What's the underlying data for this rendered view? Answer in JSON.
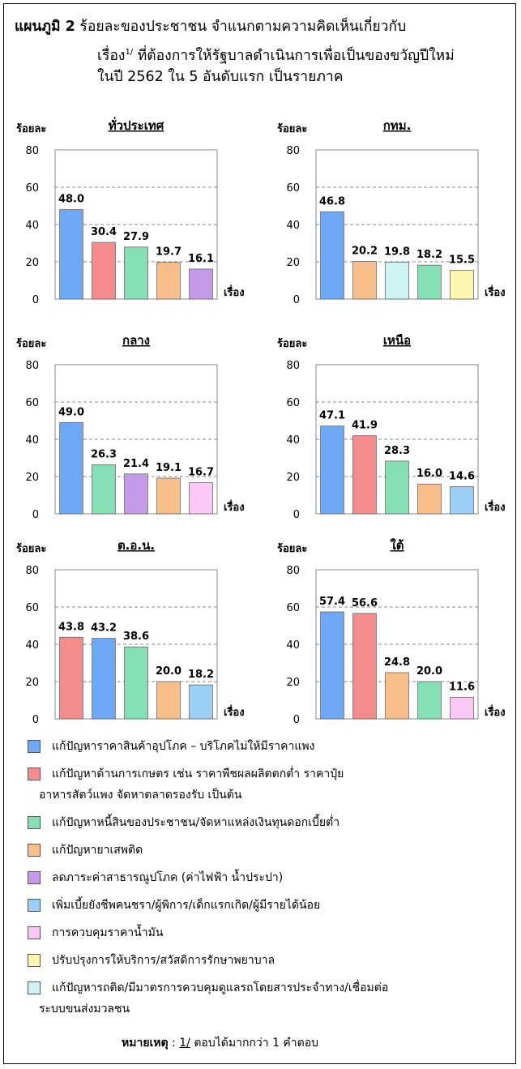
{
  "title": {
    "label": "แผนภูมิ 2",
    "line1": "ร้อยละของประชาชน  จำแนกตามความคิดเห็นเกี่ยวกับ",
    "line2_pre": "เรื่อง",
    "line2_sup": "1/",
    "line2_post": " ที่ต้องการให้รัฐบาลดำเนินการเพื่อเป็นของขวัญปีใหม่",
    "line3": "ในปี 2562 ใน 5 อันดับแรก  เป็นรายภาค"
  },
  "axis_text": {
    "ylabel": "ร้อยละ",
    "xlabel": "เรื่อง"
  },
  "colors": {
    "price": "#6fa8f5",
    "agri": "#f58c8c",
    "debt": "#86e0b6",
    "drugs": "#f8be8a",
    "utility": "#c59ae8",
    "welfare": "#9ccff5",
    "fuel": "#fbc7f5",
    "health": "#fdf6b0",
    "traffic": "#cdf3f5"
  },
  "chart_data": [
    {
      "type": "bar",
      "title": "ทั่วประเทศ",
      "ylabel": "ร้อยละ",
      "xlabel": "เรื่อง",
      "ylim": [
        0,
        80
      ],
      "yticks": [
        0,
        20,
        40,
        60,
        80
      ],
      "grid": true,
      "categories": [
        "price",
        "agri",
        "debt",
        "drugs",
        "utility"
      ],
      "values": [
        48.0,
        30.4,
        27.9,
        19.7,
        16.1
      ]
    },
    {
      "type": "bar",
      "title": "กทม.",
      "ylabel": "ร้อยละ",
      "xlabel": "เรื่อง",
      "ylim": [
        0,
        80
      ],
      "yticks": [
        0,
        20,
        40,
        60,
        80
      ],
      "grid": true,
      "categories": [
        "price",
        "drugs",
        "traffic",
        "debt",
        "health"
      ],
      "values": [
        46.8,
        20.2,
        19.8,
        18.2,
        15.5
      ]
    },
    {
      "type": "bar",
      "title": "กลาง",
      "ylabel": "ร้อยละ",
      "xlabel": "เรื่อง",
      "ylim": [
        0,
        80
      ],
      "yticks": [
        0,
        20,
        40,
        60,
        80
      ],
      "grid": true,
      "categories": [
        "price",
        "debt",
        "utility",
        "drugs",
        "fuel"
      ],
      "values": [
        49.0,
        26.3,
        21.4,
        19.1,
        16.7
      ]
    },
    {
      "type": "bar",
      "title": "เหนือ",
      "ylabel": "ร้อยละ",
      "xlabel": "เรื่อง",
      "ylim": [
        0,
        80
      ],
      "yticks": [
        0,
        20,
        40,
        60,
        80
      ],
      "grid": true,
      "categories": [
        "price",
        "agri",
        "debt",
        "drugs",
        "welfare"
      ],
      "values": [
        47.1,
        41.9,
        28.3,
        16.0,
        14.6
      ]
    },
    {
      "type": "bar",
      "title": "ต.อ.น.",
      "ylabel": "ร้อยละ",
      "xlabel": "เรื่อง",
      "ylim": [
        0,
        80
      ],
      "yticks": [
        0,
        20,
        40,
        60,
        80
      ],
      "grid": true,
      "categories": [
        "agri",
        "price",
        "debt",
        "drugs",
        "welfare"
      ],
      "values": [
        43.8,
        43.2,
        38.6,
        20.0,
        18.2
      ]
    },
    {
      "type": "bar",
      "title": "ใต้",
      "ylabel": "ร้อยละ",
      "xlabel": "เรื่อง",
      "ylim": [
        0,
        80
      ],
      "yticks": [
        0,
        20,
        40,
        60,
        80
      ],
      "grid": true,
      "categories": [
        "price",
        "agri",
        "drugs",
        "debt",
        "fuel"
      ],
      "values": [
        57.4,
        56.6,
        24.8,
        20.0,
        11.6
      ]
    }
  ],
  "legend": [
    {
      "key": "price",
      "lines": [
        "แก้ปัญหาราคาสินค้าอุปโภค – บริโภคไม่ให้มีราคาแพง"
      ]
    },
    {
      "key": "agri",
      "lines": [
        "แก้ปัญหาด้านการเกษตร เช่น ราคาพืชผลผลิตตกต่ำ ราคาปุ๋ย",
        "อาหารสัตว์แพง จัดหาตลาดรองรับ เป็นต้น"
      ]
    },
    {
      "key": "debt",
      "lines": [
        "แก้ปัญหาหนี้สินของประชาชน/จัดหาแหล่งเงินทุนดอกเบี้ยต่ำ"
      ]
    },
    {
      "key": "drugs",
      "lines": [
        "แก้ปัญหายาเสพติด"
      ]
    },
    {
      "key": "utility",
      "lines": [
        "ลดภาระค่าสาธารณูปโภค (ค่าไฟฟ้า น้ำประปา)"
      ]
    },
    {
      "key": "welfare",
      "lines": [
        "เพิ่มเบี้ยยังชีพคนชรา/ผู้พิการ/เด็กแรกเกิด/ผู้มีรายได้น้อย"
      ]
    },
    {
      "key": "fuel",
      "lines": [
        "การควบคุมราคาน้ำมัน"
      ]
    },
    {
      "key": "health",
      "lines": [
        "ปรับปรุงการให้บริการ/สวัสดิการรักษาพยาบาล"
      ]
    },
    {
      "key": "traffic",
      "lines": [
        "แก้ปัญหารถติด/มีมาตรการควบคุมดูแลรถโดยสารประจำทาง/เชื่อมต่อ",
        "ระบบขนส่งมวลชน"
      ]
    }
  ],
  "note": {
    "label": "หมายเหตุ",
    "sep": ":",
    "ref": "1/",
    "text": " ตอบได้มากกว่า 1 คำตอบ"
  }
}
